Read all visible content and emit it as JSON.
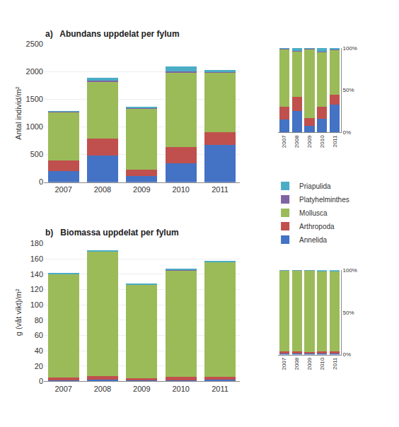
{
  "chart_data": [
    {
      "type": "bar",
      "title": "a)   Abundans uppdelat per fylum",
      "y_label": "Antal individ/m²",
      "categories": [
        "2007",
        "2008",
        "2009",
        "2010",
        "2011"
      ],
      "series": [
        {
          "name": "Annelida",
          "color": "#4472C4",
          "values": [
            200,
            480,
            110,
            340,
            670
          ]
        },
        {
          "name": "Arthropoda",
          "color": "#C0504D",
          "values": [
            195,
            315,
            120,
            300,
            230
          ]
        },
        {
          "name": "Mollusca",
          "color": "#9BBB59",
          "values": [
            880,
            1030,
            1110,
            1360,
            1100
          ]
        },
        {
          "name": "Platyhelminthes",
          "color": "#8064A2",
          "values": [
            10,
            10,
            10,
            10,
            10
          ]
        },
        {
          "name": "Priapulida",
          "color": "#4BACC6",
          "values": [
            10,
            60,
            10,
            90,
            25
          ]
        }
      ],
      "stacked": true,
      "ylim": [
        0,
        2500
      ],
      "yticks": [
        0,
        500,
        1000,
        1500,
        2000,
        2500
      ],
      "grid": true,
      "legend": "right"
    },
    {
      "type": "bar",
      "categories": [
        "2007",
        "2008",
        "2009",
        "2010",
        "2011"
      ],
      "series": [
        {
          "name": "Annelida",
          "color": "#4472C4",
          "values": [
            15.444,
            25.3298,
            8.0882,
            16.1905,
            32.9238
          ]
        },
        {
          "name": "Arthropoda",
          "color": "#C0504D",
          "values": [
            15.0579,
            16.6227,
            8.8235,
            14.2857,
            11.3022
          ]
        },
        {
          "name": "Mollusca",
          "color": "#9BBB59",
          "values": [
            67.9537,
            54.3536,
            81.6176,
            64.7619,
            54.0541
          ]
        },
        {
          "name": "Platyhelminthes",
          "color": "#8064A2",
          "values": [
            0.7722,
            0.5277,
            0.7353,
            0.4762,
            0.4914
          ]
        },
        {
          "name": "Priapulida",
          "color": "#4BACC6",
          "values": [
            0.7722,
            3.1662,
            0.7353,
            4.2857,
            1.2285
          ]
        }
      ],
      "stacked": true,
      "ylim": [
        0,
        100
      ],
      "yticks": [
        {
          "value": 0,
          "label": "0%"
        },
        {
          "value": 50,
          "label": "50%"
        },
        {
          "value": 100,
          "label": "100%"
        }
      ],
      "grid": false
    },
    {
      "type": "bar",
      "title": "b)   Biomassa uppdelat per fylum",
      "y_label": "g (våt vikt)/m²",
      "categories": [
        "2007",
        "2008",
        "2009",
        "2010",
        "2011"
      ],
      "series": [
        {
          "name": "Annelida",
          "color": "#4472C4",
          "values": [
            1.5,
            2.0,
            1.2,
            1.8,
            2.0
          ]
        },
        {
          "name": "Arthropoda",
          "color": "#C0504D",
          "values": [
            3.5,
            5.0,
            2.8,
            4.0,
            3.8
          ]
        },
        {
          "name": "Mollusca",
          "color": "#9BBB59",
          "values": [
            135,
            162,
            122,
            139,
            150
          ]
        },
        {
          "name": "Platyhelminthes",
          "color": "#8064A2",
          "values": [
            0.1,
            0.1,
            0.1,
            0.1,
            0.1
          ]
        },
        {
          "name": "Priapulida",
          "color": "#4BACC6",
          "values": [
            0.5,
            1.0,
            0.5,
            2.0,
            1.5
          ]
        }
      ],
      "stacked": true,
      "ylim": [
        0,
        180
      ],
      "yticks": [
        0,
        20,
        40,
        60,
        80,
        100,
        120,
        140,
        160,
        180
      ],
      "grid": true
    },
    {
      "type": "bar",
      "categories": [
        "2007",
        "2008",
        "2009",
        "2010",
        "2011"
      ],
      "series": [
        {
          "name": "Annelida",
          "color": "#4472C4",
          "values": [
            1.0669,
            1.1758,
            0.9479,
            1.2253,
            1.2706
          ]
        },
        {
          "name": "Arthropoda",
          "color": "#C0504D",
          "values": [
            2.4893,
            2.9394,
            2.2117,
            2.7229,
            2.4142
          ]
        },
        {
          "name": "Mollusca",
          "color": "#9BBB59",
          "values": [
            96.0171,
            95.2381,
            96.3665,
            94.6222,
            95.2986
          ]
        },
        {
          "name": "Platyhelminthes",
          "color": "#8064A2",
          "values": [
            0.0711,
            0.0588,
            0.079,
            0.0681,
            0.0635
          ]
        },
        {
          "name": "Priapulida",
          "color": "#4BACC6",
          "values": [
            0.3556,
            0.5879,
            0.3949,
            1.3615,
            0.953
          ]
        }
      ],
      "stacked": true,
      "ylim": [
        0,
        100
      ],
      "yticks": [
        {
          "value": 0,
          "label": "0%"
        },
        {
          "value": 50,
          "label": "50%"
        },
        {
          "value": 100,
          "label": "100%"
        }
      ],
      "grid": false
    }
  ]
}
